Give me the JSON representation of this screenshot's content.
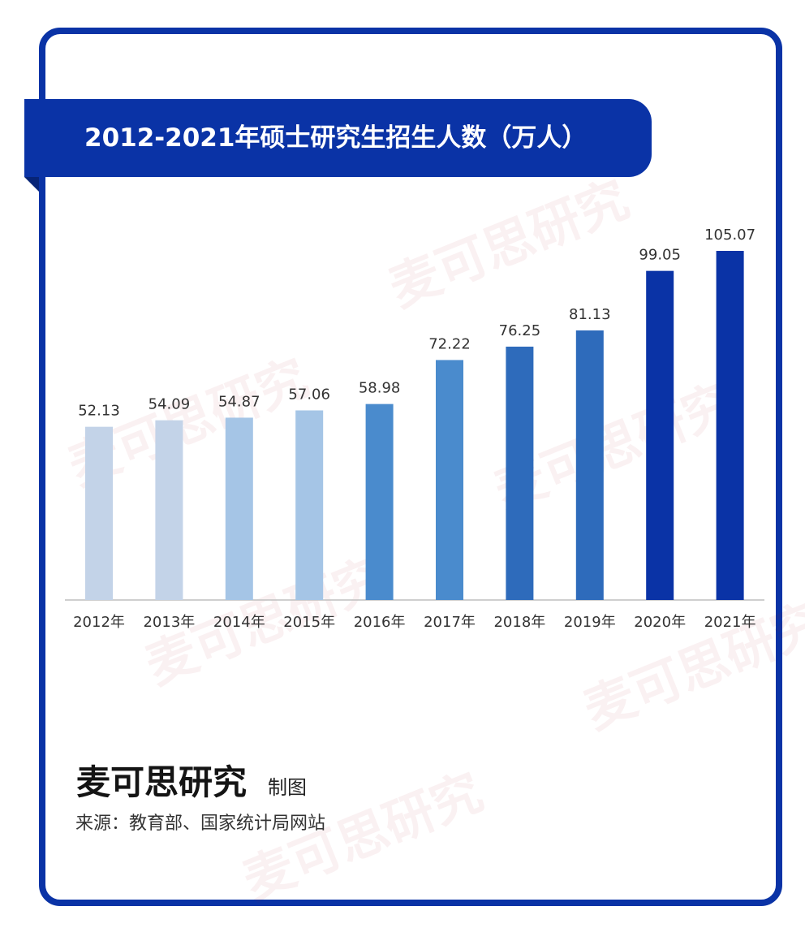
{
  "header": {
    "title": "2012-2021年硕士研究生招生人数（万人）"
  },
  "watermark": {
    "text": "麦可思研究"
  },
  "footer": {
    "brand": "麦可思研究",
    "brand_suffix": "制图",
    "source": "来源：教育部、国家统计局网站"
  },
  "chart_data": {
    "type": "bar",
    "title": "2012-2021年硕士研究生招生人数（万人）",
    "categories": [
      "2012年",
      "2013年",
      "2014年",
      "2015年",
      "2016年",
      "2017年",
      "2018年",
      "2019年",
      "2020年",
      "2021年"
    ],
    "values": [
      52.13,
      54.09,
      54.87,
      57.06,
      58.98,
      72.22,
      76.25,
      81.13,
      99.05,
      105.07
    ],
    "value_labels": [
      "52.13",
      "54.09",
      "54.87",
      "57.06",
      "58.98",
      "72.22",
      "76.25",
      "81.13",
      "99.05",
      "105.07"
    ],
    "bar_colors": [
      "#c3d3e8",
      "#c3d3e8",
      "#a5c5e6",
      "#a5c5e6",
      "#4a8bcd",
      "#4a8bcd",
      "#2e6bbb",
      "#2e6bbb",
      "#0a33a6",
      "#0a33a6"
    ],
    "ylim": [
      0,
      105.07
    ],
    "grid": false,
    "xlabel": "",
    "ylabel": ""
  },
  "colors": {
    "frame": "#0a33a6",
    "banner": "#0a33a6",
    "axis": "#bfbfbf"
  }
}
